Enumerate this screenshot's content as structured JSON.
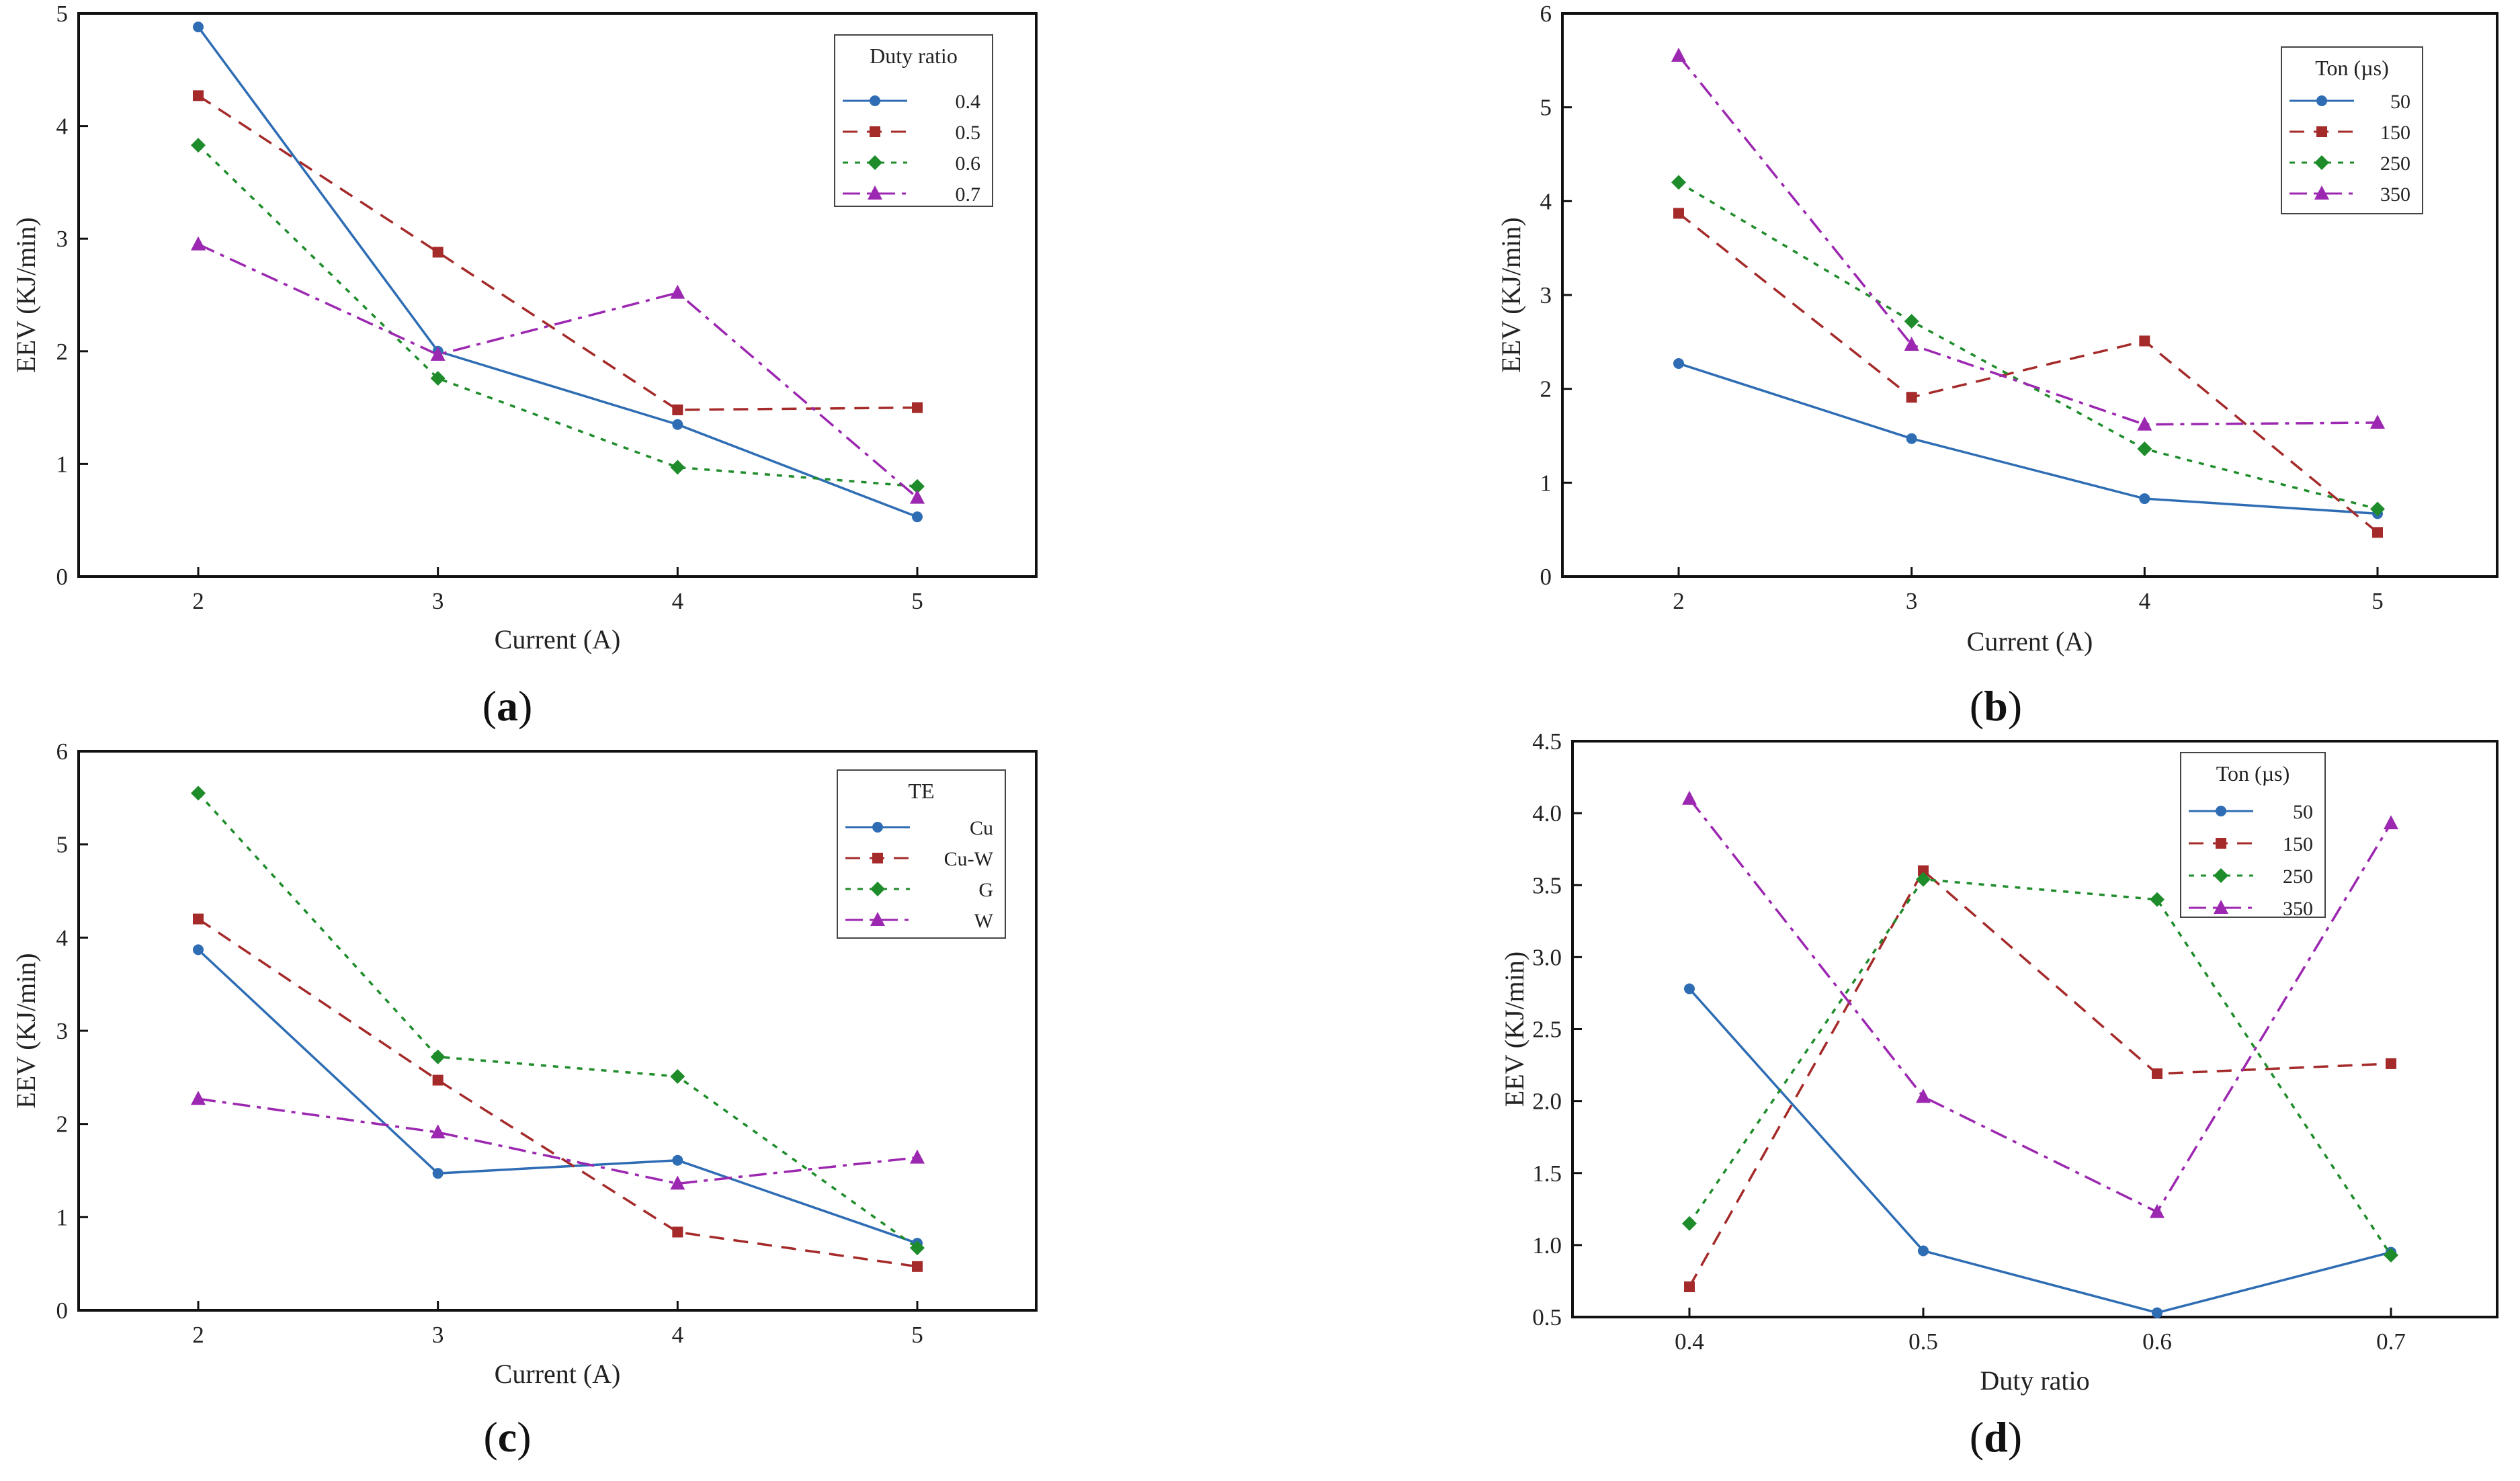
{
  "chart_data": [
    {
      "id": "a",
      "type": "line",
      "panel_label": "a",
      "xlabel": "Current (A)",
      "ylabel": "EEV (KJ/min)",
      "x": [
        2,
        3,
        4,
        5
      ],
      "xticks": [
        "2",
        "3",
        "4",
        "5"
      ],
      "ylim": [
        0,
        5
      ],
      "yticks": [
        "0",
        "1",
        "2",
        "3",
        "4",
        "5"
      ],
      "legend_title": "Duty ratio",
      "series": [
        {
          "name": "0.4",
          "color": "#2e6db4",
          "marker": "circle",
          "dash": "solid",
          "values": [
            4.88,
            2.0,
            1.35,
            0.53
          ]
        },
        {
          "name": "0.5",
          "color": "#a52a2a",
          "marker": "square",
          "dash": "dash",
          "values": [
            4.27,
            2.88,
            1.48,
            1.5
          ]
        },
        {
          "name": "0.6",
          "color": "#1e8c2a",
          "marker": "diamond",
          "dash": "dot",
          "values": [
            3.83,
            1.76,
            0.97,
            0.8
          ]
        },
        {
          "name": "0.7",
          "color": "#9c27b0",
          "marker": "triangle",
          "dash": "dashdot",
          "values": [
            2.95,
            1.97,
            2.52,
            0.7
          ]
        }
      ]
    },
    {
      "id": "b",
      "type": "line",
      "panel_label": "b",
      "xlabel": "Current (A)",
      "ylabel": "EEV (KJ/min)",
      "x": [
        2,
        3,
        4,
        5
      ],
      "xticks": [
        "2",
        "3",
        "4",
        "5"
      ],
      "ylim": [
        0,
        6
      ],
      "yticks": [
        "0",
        "1",
        "2",
        "3",
        "4",
        "5",
        "6"
      ],
      "legend_title": "Ton (µs)",
      "series": [
        {
          "name": "50",
          "color": "#2e6db4",
          "marker": "circle",
          "dash": "solid",
          "values": [
            2.27,
            1.47,
            0.83,
            0.67
          ]
        },
        {
          "name": "150",
          "color": "#a52a2a",
          "marker": "square",
          "dash": "dash",
          "values": [
            3.87,
            1.91,
            2.51,
            0.47
          ]
        },
        {
          "name": "250",
          "color": "#1e8c2a",
          "marker": "diamond",
          "dash": "dot",
          "values": [
            4.2,
            2.72,
            1.36,
            0.72
          ]
        },
        {
          "name": "350",
          "color": "#9c27b0",
          "marker": "triangle",
          "dash": "dashdot",
          "values": [
            5.55,
            2.47,
            1.62,
            1.64
          ]
        }
      ]
    },
    {
      "id": "c",
      "type": "line",
      "panel_label": "c",
      "xlabel": "Current (A)",
      "ylabel": "EEV (KJ/min)",
      "x": [
        2,
        3,
        4,
        5
      ],
      "xticks": [
        "2",
        "3",
        "4",
        "5"
      ],
      "ylim": [
        0,
        6
      ],
      "yticks": [
        "0",
        "1",
        "2",
        "3",
        "4",
        "5",
        "6"
      ],
      "legend_title": "TE",
      "series": [
        {
          "name": "Cu",
          "color": "#2e6db4",
          "marker": "circle",
          "dash": "solid",
          "values": [
            3.87,
            1.47,
            1.61,
            0.72
          ]
        },
        {
          "name": "Cu-W",
          "color": "#a52a2a",
          "marker": "square",
          "dash": "dash",
          "values": [
            4.2,
            2.47,
            0.84,
            0.47
          ]
        },
        {
          "name": "G",
          "color": "#1e8c2a",
          "marker": "diamond",
          "dash": "dot",
          "values": [
            5.55,
            2.72,
            2.51,
            0.67
          ]
        },
        {
          "name": "W",
          "color": "#9c27b0",
          "marker": "triangle",
          "dash": "dashdot",
          "values": [
            2.27,
            1.91,
            1.36,
            1.64
          ]
        }
      ]
    },
    {
      "id": "d",
      "type": "line",
      "panel_label": "d",
      "xlabel": "Duty ratio",
      "ylabel": "EEV (KJ/min)",
      "x": [
        0.4,
        0.5,
        0.6,
        0.7
      ],
      "xticks": [
        "0.4",
        "0.5",
        "0.6",
        "0.7"
      ],
      "ylim": [
        0.5,
        4.5
      ],
      "yticks": [
        "0.5",
        "1.0",
        "1.5",
        "2.0",
        "2.5",
        "3.0",
        "3.5",
        "4.0",
        "4.5"
      ],
      "legend_title": "Ton (µs)",
      "series": [
        {
          "name": "50",
          "color": "#2e6db4",
          "marker": "circle",
          "dash": "solid",
          "values": [
            2.78,
            0.96,
            0.53,
            0.95
          ]
        },
        {
          "name": "150",
          "color": "#a52a2a",
          "marker": "square",
          "dash": "dash",
          "values": [
            0.71,
            3.6,
            2.19,
            2.26
          ]
        },
        {
          "name": "250",
          "color": "#1e8c2a",
          "marker": "diamond",
          "dash": "dot",
          "values": [
            1.15,
            3.54,
            3.4,
            0.93
          ]
        },
        {
          "name": "350",
          "color": "#9c27b0",
          "marker": "triangle",
          "dash": "dashdot",
          "values": [
            4.1,
            2.03,
            1.23,
            3.93
          ]
        }
      ]
    }
  ]
}
